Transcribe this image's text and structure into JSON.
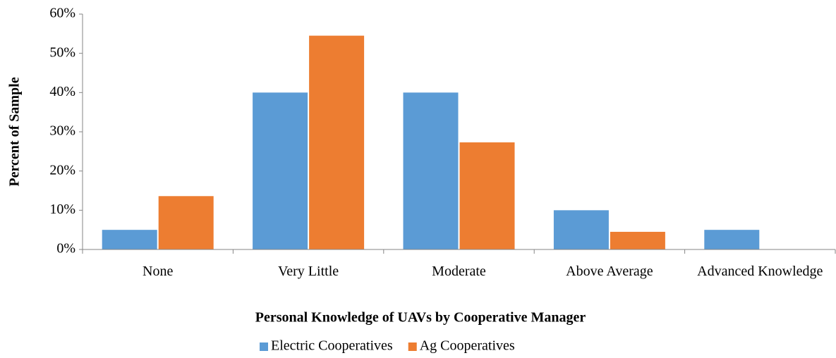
{
  "chart_data": {
    "type": "bar",
    "x_label": "Personal Knowledge of UAVs by Cooperative Manager",
    "y_label": "Percent of Sample",
    "categories": [
      "None",
      "Very Little",
      "Moderate",
      "Above Average",
      "Advanced Knowledge"
    ],
    "series": [
      {
        "name": "Electric Cooperatives",
        "color": "#5b9bd5",
        "values": [
          5,
          40,
          40,
          10,
          5
        ]
      },
      {
        "name": "Ag Cooperatives",
        "color": "#ed7d31",
        "values": [
          13.6,
          54.5,
          27.3,
          4.5,
          0
        ]
      }
    ],
    "ylim": [
      0,
      60
    ],
    "yticks": [
      {
        "value": 0,
        "label": "0%"
      },
      {
        "value": 10,
        "label": "10%"
      },
      {
        "value": 20,
        "label": "20%"
      },
      {
        "value": 30,
        "label": "30%"
      },
      {
        "value": 40,
        "label": "40%"
      },
      {
        "value": 50,
        "label": "50%"
      },
      {
        "value": 60,
        "label": "60%"
      }
    ],
    "grid": false,
    "legend": "bottom"
  }
}
